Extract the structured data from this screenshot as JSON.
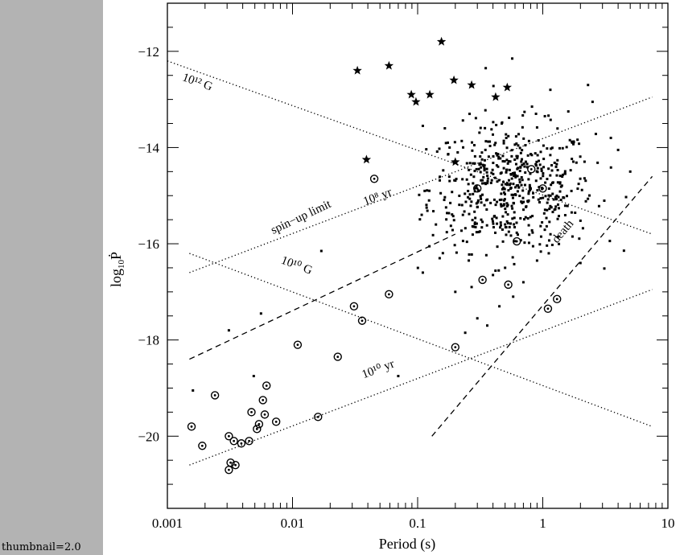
{
  "thumbnail_label": "thumbnail=2.0",
  "chart_data": {
    "type": "scatter",
    "xlabel": "Period (s)",
    "ylabel": "log",
    "ylabel_sub": "10",
    "ylabel_var": "Ṗ",
    "xscale": "log",
    "xlim": [
      0.001,
      10
    ],
    "ylim": [
      -21.5,
      -11
    ],
    "x_ticks": [
      0.001,
      0.01,
      0.1,
      1,
      10
    ],
    "x_tick_labels": [
      "0.001",
      "0.01",
      "0.1",
      "1",
      "10"
    ],
    "y_ticks": [
      -12,
      -14,
      -16,
      -18,
      -20
    ],
    "y_tick_labels": [
      "−12",
      "−14",
      "−16",
      "−18",
      "−20"
    ],
    "reference_lines": [
      {
        "label": "10¹² G",
        "style": "dotted",
        "x": [
          0.001,
          7.5
        ],
        "y": [
          -12.2,
          -15.8
        ],
        "label_x": 0.0013,
        "label_y": -12.6
      },
      {
        "label": "10⁸ yr",
        "style": "dotted",
        "x": [
          0.0015,
          7.5
        ],
        "y": [
          -16.6,
          -12.95
        ],
        "label_x": 0.038,
        "label_y": -15.2
      },
      {
        "label": "10¹⁰ G",
        "style": "dotted",
        "x": [
          0.0015,
          7.5
        ],
        "y": [
          -16.2,
          -19.8
        ],
        "label_x": 0.008,
        "label_y": -16.4
      },
      {
        "label": "10¹⁰ yr",
        "style": "dotted",
        "x": [
          0.0015,
          7.5
        ],
        "y": [
          -20.6,
          -16.95
        ],
        "label_x": 0.037,
        "label_y": -18.8
      },
      {
        "label": "spin−up limit",
        "style": "dashed",
        "x": [
          0.0015,
          0.2
        ],
        "y": [
          -18.4,
          -15.8
        ],
        "label_x": 0.007,
        "label_y": -15.8
      },
      {
        "label": "death",
        "style": "dashed",
        "x": [
          0.13,
          7.5
        ],
        "y": [
          -20.0,
          -14.6
        ],
        "label_x": 1.3,
        "label_y": -16.0
      }
    ],
    "stars": [
      {
        "x": 0.033,
        "y": -12.4
      },
      {
        "x": 0.059,
        "y": -12.3
      },
      {
        "x": 0.155,
        "y": -11.8
      },
      {
        "x": 0.089,
        "y": -12.9
      },
      {
        "x": 0.097,
        "y": -13.05
      },
      {
        "x": 0.125,
        "y": -12.9
      },
      {
        "x": 0.195,
        "y": -12.6
      },
      {
        "x": 0.27,
        "y": -12.7
      },
      {
        "x": 0.52,
        "y": -12.75
      },
      {
        "x": 0.42,
        "y": -12.95
      },
      {
        "x": 0.039,
        "y": -14.25
      },
      {
        "x": 0.2,
        "y": -14.3
      }
    ],
    "binaries": [
      {
        "x": 0.00156,
        "y": -19.8
      },
      {
        "x": 0.0019,
        "y": -20.2
      },
      {
        "x": 0.0024,
        "y": -19.15
      },
      {
        "x": 0.0031,
        "y": -20.0
      },
      {
        "x": 0.0032,
        "y": -20.55
      },
      {
        "x": 0.0031,
        "y": -20.7
      },
      {
        "x": 0.0034,
        "y": -20.1
      },
      {
        "x": 0.0035,
        "y": -20.6
      },
      {
        "x": 0.0039,
        "y": -20.15
      },
      {
        "x": 0.0045,
        "y": -20.1
      },
      {
        "x": 0.0047,
        "y": -19.5
      },
      {
        "x": 0.0052,
        "y": -19.85
      },
      {
        "x": 0.0054,
        "y": -19.75
      },
      {
        "x": 0.0058,
        "y": -19.25
      },
      {
        "x": 0.006,
        "y": -19.55
      },
      {
        "x": 0.0062,
        "y": -18.95
      },
      {
        "x": 0.0074,
        "y": -19.7
      },
      {
        "x": 0.011,
        "y": -18.1
      },
      {
        "x": 0.016,
        "y": -19.6
      },
      {
        "x": 0.023,
        "y": -18.35
      },
      {
        "x": 0.031,
        "y": -17.3
      },
      {
        "x": 0.036,
        "y": -17.6
      },
      {
        "x": 0.045,
        "y": -14.65
      },
      {
        "x": 0.059,
        "y": -17.05
      },
      {
        "x": 0.2,
        "y": -18.15
      },
      {
        "x": 0.33,
        "y": -16.75
      },
      {
        "x": 0.53,
        "y": -16.85
      },
      {
        "x": 0.62,
        "y": -15.95
      },
      {
        "x": 0.81,
        "y": -14.45
      },
      {
        "x": 1.0,
        "y": -14.85
      },
      {
        "x": 1.1,
        "y": -17.35
      },
      {
        "x": 1.3,
        "y": -17.15
      },
      {
        "x": 0.3,
        "y": -14.85
      }
    ],
    "isolated_pulsars": [
      {
        "x": 0.0016,
        "y": -19.05
      },
      {
        "x": 0.0031,
        "y": -17.8
      },
      {
        "x": 0.0049,
        "y": -18.75
      },
      {
        "x": 0.0056,
        "y": -17.45
      },
      {
        "x": 0.017,
        "y": -16.15
      },
      {
        "x": 0.07,
        "y": -18.75
      },
      {
        "x": 0.11,
        "y": -16.6
      },
      {
        "x": 0.118,
        "y": -15.25
      },
      {
        "x": 0.14,
        "y": -15.6
      },
      {
        "x": 0.15,
        "y": -16.3
      },
      {
        "x": 0.165,
        "y": -13.6
      },
      {
        "x": 0.18,
        "y": -14.0
      },
      {
        "x": 0.2,
        "y": -17.0
      },
      {
        "x": 0.23,
        "y": -15.4
      },
      {
        "x": 0.24,
        "y": -17.85
      },
      {
        "x": 0.27,
        "y": -16.9
      },
      {
        "x": 0.3,
        "y": -17.55
      },
      {
        "x": 0.36,
        "y": -17.7
      },
      {
        "x": 0.4,
        "y": -16.65
      },
      {
        "x": 0.45,
        "y": -17.3
      },
      {
        "x": 0.5,
        "y": -16.5
      },
      {
        "x": 0.58,
        "y": -17.1
      },
      {
        "x": 0.7,
        "y": -16.8
      },
      {
        "x": 0.9,
        "y": -16.35
      },
      {
        "x": 2.0,
        "y": -16.4
      },
      {
        "x": 2.3,
        "y": -12.7
      },
      {
        "x": 2.5,
        "y": -13.05
      },
      {
        "x": 3.5,
        "y": -13.8
      },
      {
        "x": 4.0,
        "y": -14.05
      },
      {
        "x": 5.0,
        "y": -14.5
      },
      {
        "x": 0.35,
        "y": -12.35
      },
      {
        "x": 0.57,
        "y": -12.15
      },
      {
        "x": 0.82,
        "y": -13.15
      },
      {
        "x": 1.15,
        "y": -12.8
      },
      {
        "x": 1.6,
        "y": -13.25
      },
      {
        "x": 0.11,
        "y": -13.55
      },
      {
        "x": 0.26,
        "y": -13.3
      },
      {
        "x": 0.47,
        "y": -13.5
      }
    ],
    "cloud": {
      "center_log10_period": -0.25,
      "center_log10_pdot": -14.85,
      "sd_log10_period": 0.33,
      "sd_log10_pdot": 0.65,
      "count": 560
    }
  }
}
